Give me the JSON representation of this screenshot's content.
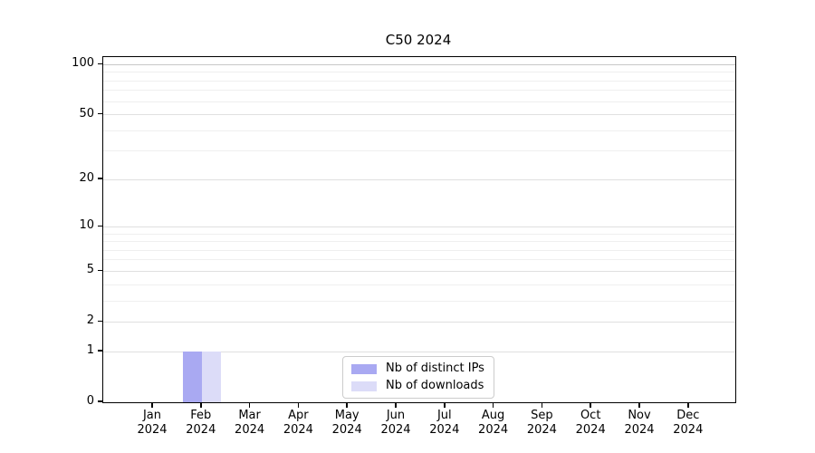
{
  "chart_data": {
    "type": "bar",
    "title": "C50 2024",
    "x_tick_labels": [
      {
        "month": "Jan",
        "year": "2024"
      },
      {
        "month": "Feb",
        "year": "2024"
      },
      {
        "month": "Mar",
        "year": "2024"
      },
      {
        "month": "Apr",
        "year": "2024"
      },
      {
        "month": "May",
        "year": "2024"
      },
      {
        "month": "Jun",
        "year": "2024"
      },
      {
        "month": "Jul",
        "year": "2024"
      },
      {
        "month": "Aug",
        "year": "2024"
      },
      {
        "month": "Sep",
        "year": "2024"
      },
      {
        "month": "Oct",
        "year": "2024"
      },
      {
        "month": "Nov",
        "year": "2024"
      },
      {
        "month": "Dec",
        "year": "2024"
      }
    ],
    "series": [
      {
        "name": "Nb of distinct IPs",
        "color": "#a9a9f2",
        "values": [
          0,
          1,
          0,
          0,
          0,
          0,
          0,
          0,
          0,
          0,
          0,
          0
        ]
      },
      {
        "name": "Nb of downloads",
        "color": "#dcdcf8",
        "values": [
          0,
          1,
          0,
          0,
          0,
          0,
          0,
          0,
          0,
          0,
          0,
          0
        ]
      }
    ],
    "y_axis": {
      "scale": "log(1+y)",
      "major_ticks": [
        0,
        1,
        2,
        5,
        10,
        20,
        50,
        100
      ],
      "minor_gridlines": [
        3,
        4,
        6,
        7,
        8,
        9,
        30,
        40,
        60,
        70,
        80,
        90
      ],
      "ylim": [
        0,
        111
      ]
    },
    "legend": {
      "position": "bottom-center-inside"
    },
    "grid": true
  },
  "colors": {
    "spine": "#000000",
    "grid_major": "#e0e0e0",
    "grid_minor": "#efefef",
    "grid_top": "#c8c8c8",
    "legend_border": "#cccccc",
    "background": "#ffffff"
  }
}
